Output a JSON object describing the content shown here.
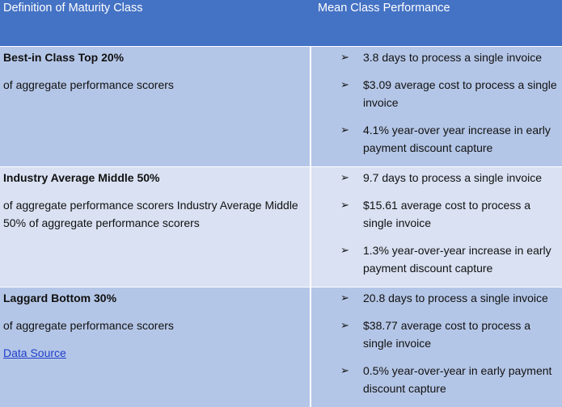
{
  "header": {
    "col1": "Definition of Maturity Class",
    "col2": "Mean Class Performance"
  },
  "rows": [
    {
      "level": "Best-in Class Top 20%",
      "description": "of aggregate performance scorers",
      "bullets": [
        "3.8 days to process a single invoice",
        "$3.09 average cost to process a single invoice",
        "4.1% year-over year increase in early payment discount capture"
      ]
    },
    {
      "level": "Industry Average Middle 50%",
      "description": "of aggregate performance scorers Industry Average Middle 50% of aggregate performance scorers",
      "bullets": [
        "9.7 days to process a single invoice",
        "$15.61 average cost to process a single invoice",
        "1.3% year-over-year increase in early payment discount capture"
      ]
    },
    {
      "level": "Laggard Bottom 30%",
      "description": "of aggregate performance scorers",
      "link": "Data Source",
      "bullets": [
        "20.8 days to process a single invoice",
        "$38.77 average cost to process a single invoice",
        "0.5% year-over-year in early payment discount capture"
      ]
    }
  ],
  "bullet_icon": "arrow-bullet-icon",
  "colors": {
    "header": "#4472c4",
    "band_dark": "#b4c6e7",
    "band_light": "#d9e1f2"
  }
}
